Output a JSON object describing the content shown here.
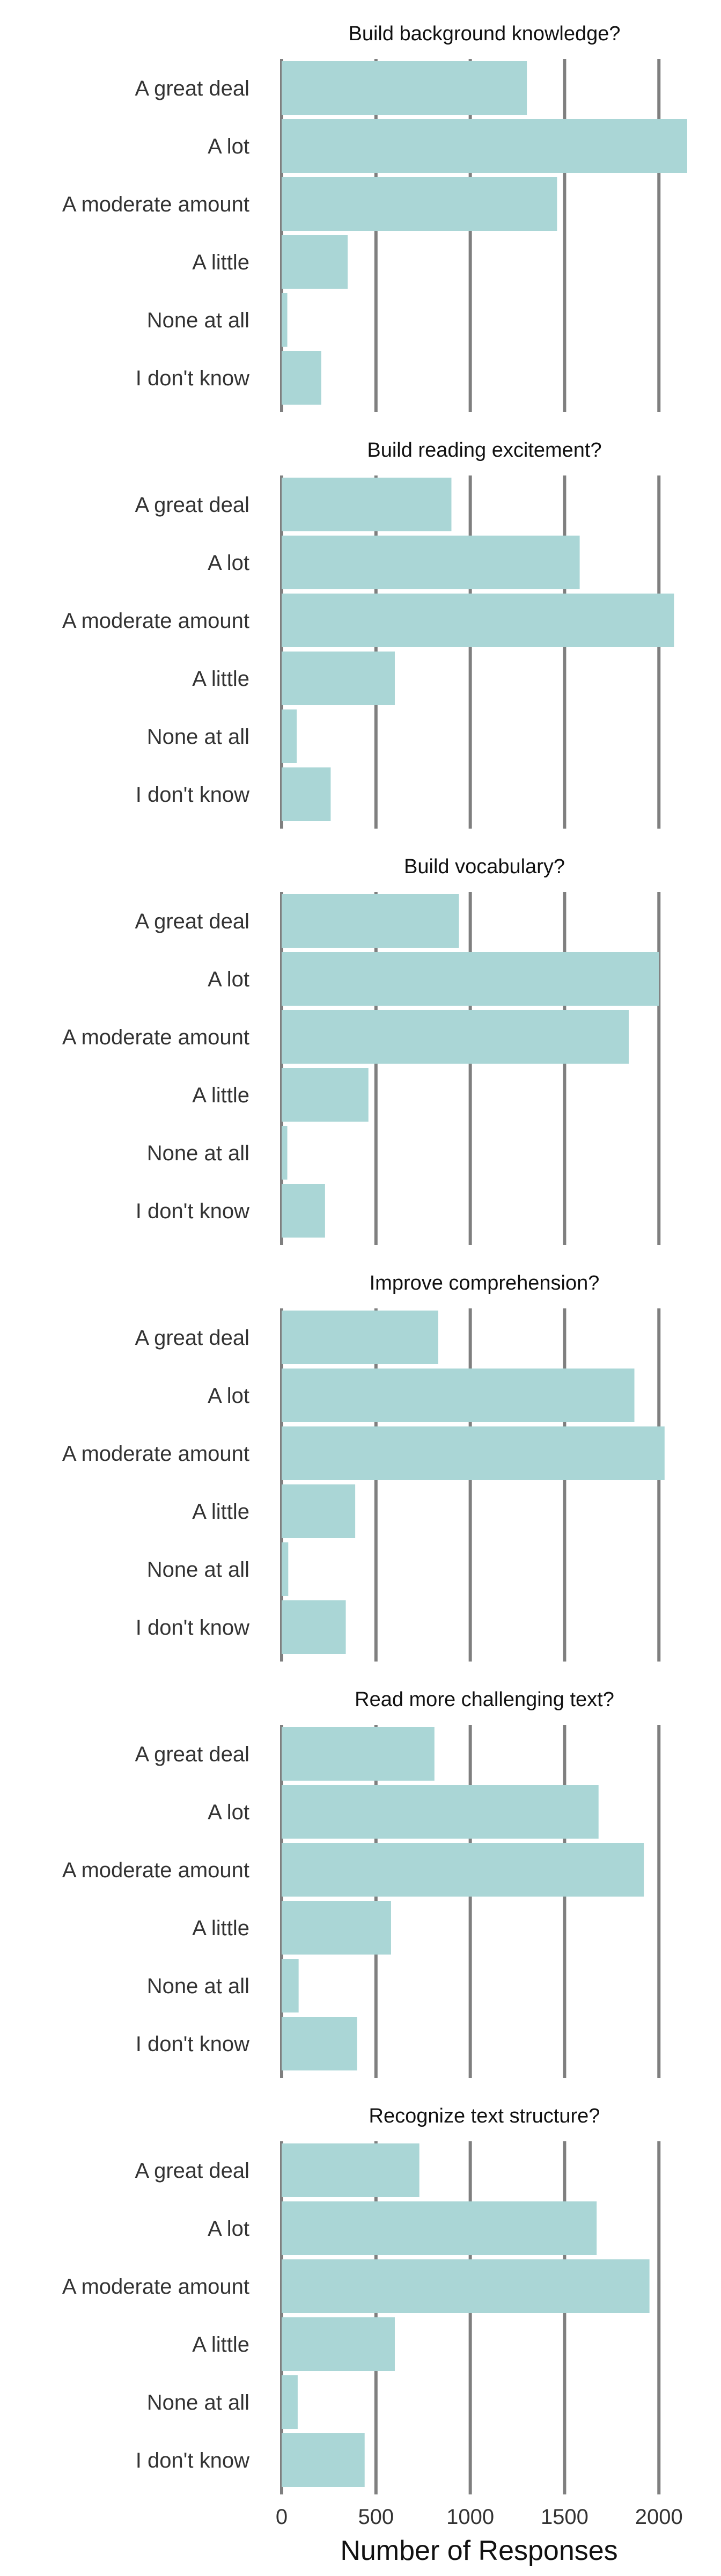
{
  "chart_data": {
    "type": "bar",
    "orientation": "horizontal",
    "categories": [
      "A great deal",
      "A lot",
      "A moderate amount",
      "A little",
      "None at all",
      "I don't know"
    ],
    "xlabel": "Number of Responses",
    "xlim": [
      0,
      2150
    ],
    "xticks": [
      0,
      500,
      1000,
      1500,
      2000
    ],
    "xtick_labels": [
      "0",
      "500",
      "1000",
      "1500",
      "2000"
    ],
    "grid": true,
    "bar_color": "#aad6d6",
    "grid_color": "#7f7f7f",
    "panels": [
      {
        "title": "Build background knowledge?",
        "values": [
          1300,
          2150,
          1460,
          350,
          30,
          210
        ]
      },
      {
        "title": "Build reading excitement?",
        "values": [
          900,
          1580,
          2080,
          600,
          80,
          260
        ]
      },
      {
        "title": "Build vocabulary?",
        "values": [
          940,
          2000,
          1840,
          460,
          30,
          230
        ]
      },
      {
        "title": "Improve comprehension?",
        "values": [
          830,
          1870,
          2030,
          390,
          35,
          340
        ]
      },
      {
        "title": "Read more challenging text?",
        "values": [
          810,
          1680,
          1920,
          580,
          90,
          400
        ]
      },
      {
        "title": "Recognize text structure?",
        "values": [
          730,
          1670,
          1950,
          600,
          85,
          440
        ]
      }
    ]
  }
}
